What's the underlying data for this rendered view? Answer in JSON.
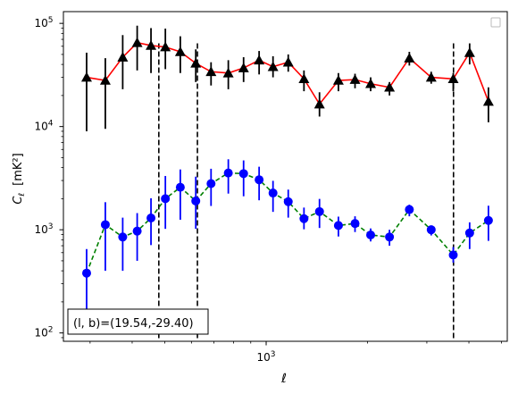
{
  "chart_data": {
    "type": "scatter",
    "x_scale": "log",
    "y_scale": "log",
    "xlim": [
      250,
      5200
    ],
    "ylim": [
      83,
      130000
    ],
    "xlabel": "ℓ",
    "ylabel_main": "C",
    "ylabel_sub": "ℓ",
    "ylabel_unit": "[mK²]",
    "x_major_ticks": [
      {
        "value": 1000,
        "base": "10",
        "exp": "3"
      }
    ],
    "y_major_ticks": [
      {
        "value": 100,
        "base": "10",
        "exp": "2"
      },
      {
        "value": 1000,
        "base": "10",
        "exp": "3"
      },
      {
        "value": 10000,
        "base": "10",
        "exp": "4"
      },
      {
        "value": 100000,
        "base": "10",
        "exp": "5"
      }
    ],
    "vlines": [
      480,
      625,
      3600
    ],
    "annotation": "(l, b)=(19.54,-29.40)",
    "series": [
      {
        "marker": "triangle",
        "line_color": "#ff0000",
        "line_style": "solid",
        "marker_color": "#000000",
        "x": [
          293,
          333,
          375,
          414,
          455,
          502,
          556,
          618,
          686,
          772,
          857,
          953,
          1048,
          1163,
          1295,
          1440,
          1639,
          1836,
          2043,
          2324,
          2662,
          3091,
          3594,
          4020,
          4571
        ],
        "y": [
          30000,
          28000,
          47000,
          65000,
          61000,
          59000,
          53000,
          41000,
          34000,
          33000,
          37000,
          44000,
          38000,
          42000,
          29000,
          16500,
          28000,
          28500,
          26000,
          24000,
          46000,
          30000,
          29000,
          52000,
          17500
        ],
        "err_low": [
          21000,
          18500,
          24000,
          30000,
          28000,
          23000,
          20000,
          14000,
          9000,
          10000,
          10000,
          12000,
          8000,
          8000,
          7000,
          4000,
          6000,
          5000,
          4000,
          4000,
          7000,
          4000,
          7000,
          12000,
          6500
        ],
        "err_high": [
          22000,
          18000,
          30000,
          30000,
          29000,
          30000,
          22000,
          15000,
          8000,
          11000,
          10000,
          10000,
          10000,
          8000,
          6000,
          5000,
          5000,
          4000,
          4000,
          3000,
          7000,
          4000,
          4000,
          12000,
          6500
        ]
      },
      {
        "marker": "circle",
        "line_color": "#008000",
        "line_style": "dashed",
        "marker_color": "#0000ff",
        "x": [
          293,
          333,
          375,
          414,
          455,
          502,
          556,
          618,
          686,
          772,
          857,
          953,
          1048,
          1163,
          1295,
          1440,
          1639,
          1836,
          2043,
          2324,
          2662,
          3091,
          3594,
          4020,
          4571
        ],
        "y": [
          380,
          1120,
          850,
          970,
          1300,
          2000,
          2580,
          1900,
          2800,
          3550,
          3500,
          3050,
          2270,
          1870,
          1280,
          1500,
          1100,
          1150,
          890,
          850,
          1570,
          1000,
          570,
          930,
          1230
        ],
        "err_low": [
          240,
          720,
          450,
          470,
          590,
          980,
          1330,
          880,
          1100,
          1310,
          1390,
          1120,
          780,
          560,
          270,
          460,
          240,
          200,
          120,
          150,
          220,
          120,
          90,
          280,
          450
        ],
        "err_high": [
          270,
          730,
          460,
          480,
          720,
          1320,
          1260,
          1370,
          1100,
          1270,
          1200,
          1030,
          710,
          580,
          360,
          490,
          240,
          200,
          140,
          150,
          180,
          100,
          110,
          250,
          480
        ]
      }
    ]
  }
}
